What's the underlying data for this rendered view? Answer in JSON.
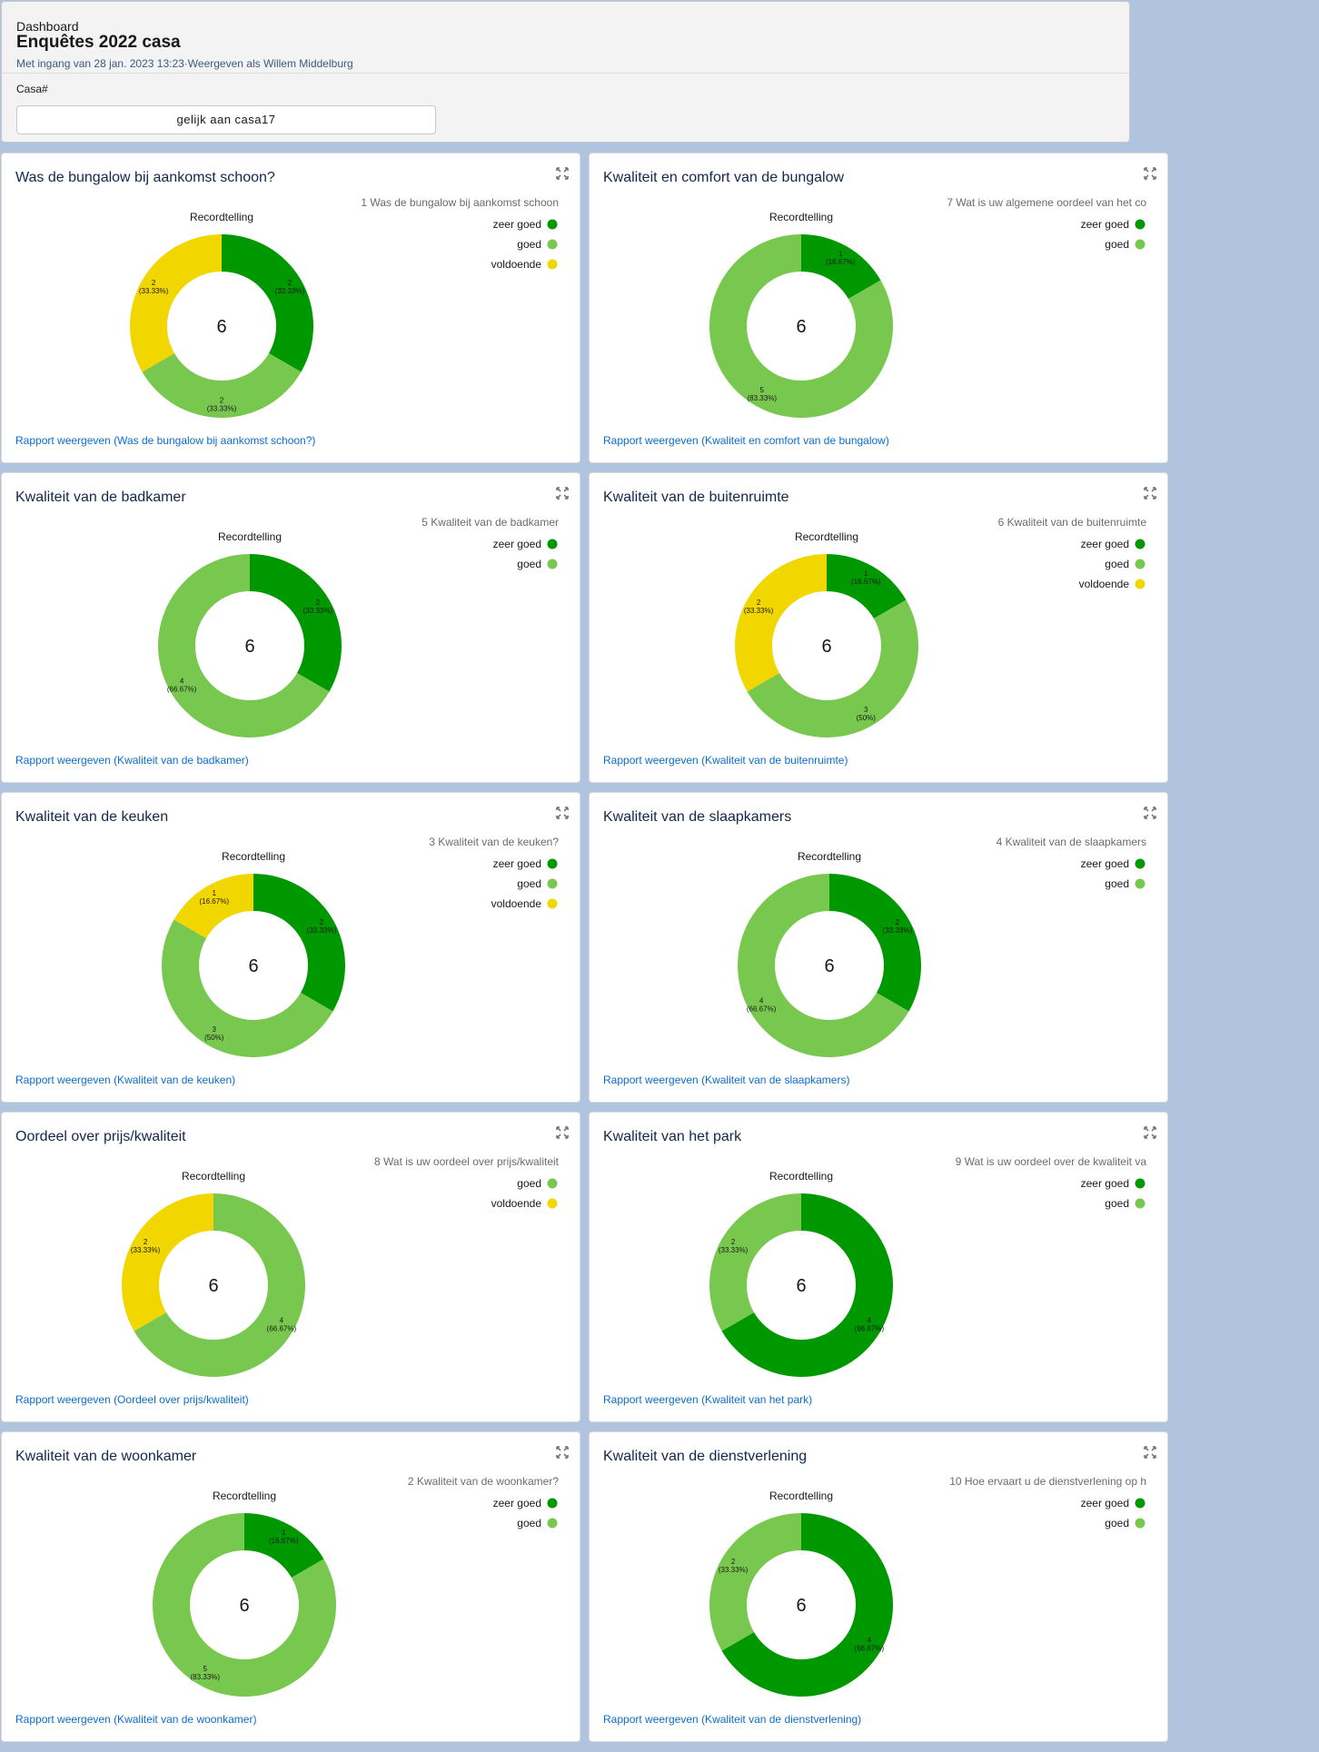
{
  "header": {
    "label": "Dashboard",
    "title": "Enquêtes 2022 casa",
    "subtitle": "Met ingang van 28 jan. 2023 13:23·Weergeven als Willem Middelburg",
    "filter_label": "Casa#",
    "filter_value": "gelijk aan casa17"
  },
  "colors": {
    "zeer goed": "#009800",
    "goed": "#78c850",
    "voldoende": "#f2d600"
  },
  "cards": [
    {
      "title": "Was de bungalow bij aankomst schoon?",
      "link": "Rapport weergeven (Was de bungalow bij aankomst schoon?)"
    },
    {
      "title": "Kwaliteit en comfort van de bungalow",
      "link": "Rapport weergeven (Kwaliteit en comfort van de bungalow)"
    },
    {
      "title": "Kwaliteit van de badkamer",
      "link": "Rapport weergeven (Kwaliteit van de badkamer)"
    },
    {
      "title": "Kwaliteit van de buitenruimte",
      "link": "Rapport weergeven (Kwaliteit van de buitenruimte)"
    },
    {
      "title": "Kwaliteit van de keuken",
      "link": "Rapport weergeven (Kwaliteit van de keuken)"
    },
    {
      "title": "Kwaliteit van de slaapkamers",
      "link": "Rapport weergeven (Kwaliteit van de slaapkamers)"
    },
    {
      "title": "Oordeel over prijs/kwaliteit",
      "link": "Rapport weergeven (Oordeel over prijs/kwaliteit)"
    },
    {
      "title": "Kwaliteit van het park",
      "link": "Rapport weergeven (Kwaliteit van het park)"
    },
    {
      "title": "Kwaliteit van de woonkamer",
      "link": "Rapport weergeven (Kwaliteit van de woonkamer)"
    },
    {
      "title": "Kwaliteit van de dienstverlening",
      "link": "Rapport weergeven (Kwaliteit van de dienstverlening)"
    }
  ],
  "chart_data": [
    {
      "type": "pie",
      "donut": true,
      "title": "Recordtelling",
      "legend_title": "1 Was de bungalow bij aankomst schoon",
      "legend_position": "top-right",
      "total": 6,
      "slices": [
        {
          "label": "zeer goed",
          "value": 2,
          "percent": "33.33%"
        },
        {
          "label": "goed",
          "value": 2,
          "percent": "33.33%"
        },
        {
          "label": "voldoende",
          "value": 2,
          "percent": "33.33%"
        }
      ]
    },
    {
      "type": "pie",
      "donut": true,
      "title": "Recordtelling",
      "legend_title": "7 Wat is uw  algemene oordeel van het co",
      "legend_position": "top-right",
      "total": 6,
      "slices": [
        {
          "label": "zeer goed",
          "value": 1,
          "percent": "16.67%"
        },
        {
          "label": "goed",
          "value": 5,
          "percent": "83.33%"
        }
      ]
    },
    {
      "type": "pie",
      "donut": true,
      "title": "Recordtelling",
      "legend_title": "5 Kwaliteit van de badkamer",
      "legend_position": "top-right",
      "total": 6,
      "slices": [
        {
          "label": "zeer goed",
          "value": 2,
          "percent": "33.33%"
        },
        {
          "label": "goed",
          "value": 4,
          "percent": "66.67%"
        }
      ]
    },
    {
      "type": "pie",
      "donut": true,
      "title": "Recordtelling",
      "legend_title": "6 Kwaliteit van de buitenruimte",
      "legend_position": "top-right",
      "total": 6,
      "slices": [
        {
          "label": "zeer goed",
          "value": 1,
          "percent": "16.67%"
        },
        {
          "label": "goed",
          "value": 3,
          "percent": "50%"
        },
        {
          "label": "voldoende",
          "value": 2,
          "percent": "33.33%"
        }
      ]
    },
    {
      "type": "pie",
      "donut": true,
      "title": "Recordtelling",
      "legend_title": "3 Kwaliteit van de keuken?",
      "legend_position": "top-right",
      "total": 6,
      "slices": [
        {
          "label": "zeer goed",
          "value": 2,
          "percent": "33.33%"
        },
        {
          "label": "goed",
          "value": 3,
          "percent": "50%"
        },
        {
          "label": "voldoende",
          "value": 1,
          "percent": "16.67%"
        }
      ]
    },
    {
      "type": "pie",
      "donut": true,
      "title": "Recordtelling",
      "legend_title": "4 Kwaliteit van de slaapkamers",
      "legend_position": "top-right",
      "total": 6,
      "slices": [
        {
          "label": "zeer goed",
          "value": 2,
          "percent": "33.33%"
        },
        {
          "label": "goed",
          "value": 4,
          "percent": "66.67%"
        }
      ]
    },
    {
      "type": "pie",
      "donut": true,
      "title": "Recordtelling",
      "legend_title": "8 Wat is uw oordeel over prijs/kwaliteit",
      "legend_position": "top-right",
      "total": 6,
      "slices": [
        {
          "label": "goed",
          "value": 4,
          "percent": "66.67%"
        },
        {
          "label": "voldoende",
          "value": 2,
          "percent": "33.33%"
        }
      ]
    },
    {
      "type": "pie",
      "donut": true,
      "title": "Recordtelling",
      "legend_title": "9 Wat is uw oordeel over de kwaliteit va",
      "legend_position": "top-right",
      "total": 6,
      "slices": [
        {
          "label": "zeer goed",
          "value": 4,
          "percent": "66.67%"
        },
        {
          "label": "goed",
          "value": 2,
          "percent": "33.33%"
        }
      ]
    },
    {
      "type": "pie",
      "donut": true,
      "title": "Recordtelling",
      "legend_title": "2 Kwaliteit van de woonkamer?",
      "legend_position": "top-right",
      "total": 6,
      "slices": [
        {
          "label": "zeer goed",
          "value": 1,
          "percent": "16.67%"
        },
        {
          "label": "goed",
          "value": 5,
          "percent": "83.33%"
        }
      ]
    },
    {
      "type": "pie",
      "donut": true,
      "title": "Recordtelling",
      "legend_title": "10 Hoe ervaart u de dienstverlening op h",
      "legend_position": "top-right",
      "total": 6,
      "slices": [
        {
          "label": "zeer goed",
          "value": 4,
          "percent": "66.67%"
        },
        {
          "label": "goed",
          "value": 2,
          "percent": "33.33%"
        }
      ]
    }
  ]
}
